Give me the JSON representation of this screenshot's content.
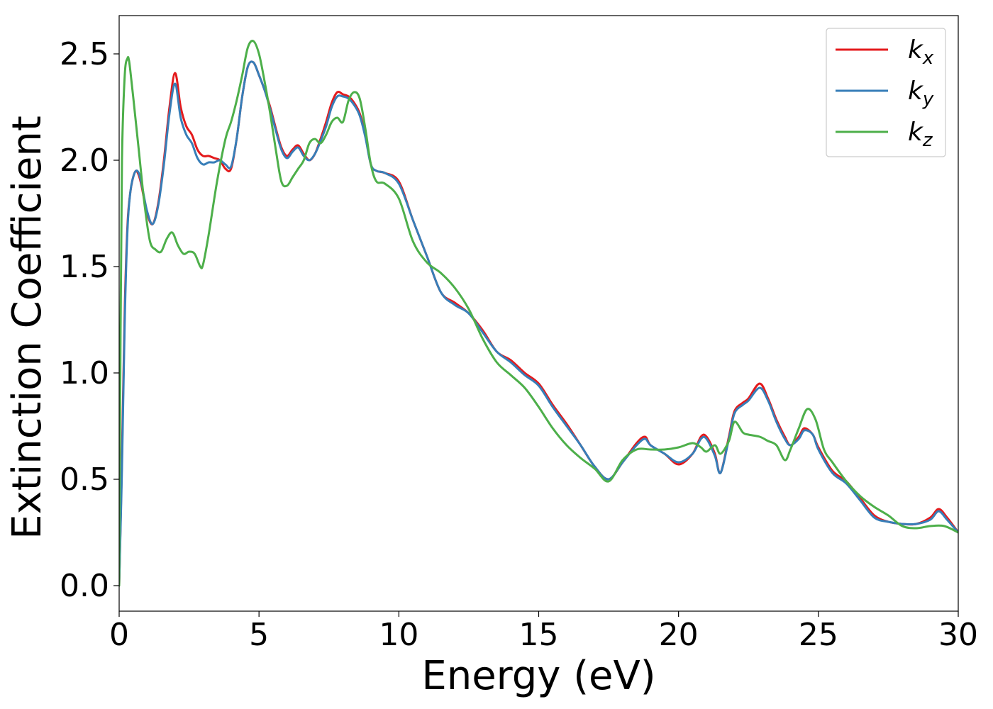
{
  "chart_data": {
    "type": "line",
    "title": "",
    "xlabel": "Energy (eV)",
    "ylabel": "Extinction Coefficient",
    "xlim": [
      0,
      30
    ],
    "ylim": [
      -0.12,
      2.68
    ],
    "xticks": [
      0,
      5,
      10,
      15,
      20,
      25,
      30
    ],
    "xtick_labels": [
      "0",
      "5",
      "10",
      "15",
      "20",
      "25",
      "30"
    ],
    "yticks": [
      0.0,
      0.5,
      1.0,
      1.5,
      2.0,
      2.5
    ],
    "ytick_labels": [
      "0.0",
      "0.5",
      "1.0",
      "1.5",
      "2.0",
      "2.5"
    ],
    "grid": false,
    "legend_position": "top-right",
    "series": [
      {
        "name": "k",
        "subscript": "x",
        "color": "#e41a1c",
        "x": [
          0,
          0.1,
          0.2,
          0.3,
          0.4,
          0.5,
          0.6,
          0.7,
          0.8,
          1.0,
          1.2,
          1.4,
          1.6,
          1.8,
          2.0,
          2.2,
          2.4,
          2.6,
          2.8,
          3.0,
          3.2,
          3.4,
          3.6,
          3.8,
          4.0,
          4.2,
          4.4,
          4.6,
          4.8,
          5.0,
          5.2,
          5.4,
          5.6,
          5.8,
          6.0,
          6.2,
          6.4,
          6.6,
          6.8,
          7.0,
          7.2,
          7.4,
          7.6,
          7.8,
          8.0,
          8.2,
          8.4,
          8.6,
          8.8,
          9.0,
          9.2,
          9.5,
          10.0,
          10.5,
          11.0,
          11.5,
          12.0,
          12.5,
          13.0,
          13.5,
          14.0,
          14.5,
          15.0,
          15.5,
          16.0,
          16.5,
          17.0,
          17.5,
          18.0,
          18.5,
          18.8,
          19.0,
          19.5,
          20.0,
          20.5,
          20.8,
          21.0,
          21.3,
          21.5,
          21.8,
          22.0,
          22.3,
          22.5,
          22.9,
          23.2,
          23.5,
          23.8,
          24.0,
          24.3,
          24.5,
          24.8,
          25.0,
          25.5,
          26.0,
          26.5,
          27.0,
          27.5,
          28.0,
          28.5,
          29.0,
          29.3,
          29.6,
          30.0
        ],
        "y": [
          0.0,
          0.6,
          1.3,
          1.7,
          1.85,
          1.92,
          1.95,
          1.93,
          1.88,
          1.75,
          1.7,
          1.8,
          2.0,
          2.25,
          2.41,
          2.25,
          2.16,
          2.12,
          2.05,
          2.02,
          2.02,
          2.01,
          2.0,
          1.96,
          1.96,
          2.1,
          2.3,
          2.44,
          2.46,
          2.4,
          2.33,
          2.25,
          2.15,
          2.06,
          2.02,
          2.05,
          2.07,
          2.03,
          2.0,
          2.03,
          2.1,
          2.18,
          2.27,
          2.32,
          2.31,
          2.3,
          2.27,
          2.22,
          2.12,
          1.98,
          1.95,
          1.94,
          1.9,
          1.72,
          1.55,
          1.38,
          1.33,
          1.28,
          1.2,
          1.1,
          1.06,
          1.0,
          0.95,
          0.85,
          0.76,
          0.66,
          0.56,
          0.5,
          0.58,
          0.67,
          0.7,
          0.66,
          0.62,
          0.57,
          0.62,
          0.7,
          0.7,
          0.62,
          0.53,
          0.7,
          0.82,
          0.86,
          0.88,
          0.95,
          0.88,
          0.78,
          0.7,
          0.66,
          0.7,
          0.74,
          0.71,
          0.65,
          0.54,
          0.49,
          0.41,
          0.33,
          0.3,
          0.29,
          0.29,
          0.32,
          0.36,
          0.32,
          0.25
        ]
      },
      {
        "name": "k",
        "subscript": "y",
        "color": "#377eb8",
        "x": [
          0,
          0.1,
          0.2,
          0.3,
          0.4,
          0.5,
          0.6,
          0.7,
          0.8,
          1.0,
          1.2,
          1.4,
          1.6,
          1.8,
          2.0,
          2.2,
          2.4,
          2.6,
          2.8,
          3.0,
          3.2,
          3.4,
          3.6,
          3.8,
          4.0,
          4.2,
          4.4,
          4.6,
          4.8,
          5.0,
          5.2,
          5.4,
          5.6,
          5.8,
          6.0,
          6.2,
          6.4,
          6.6,
          6.8,
          7.0,
          7.2,
          7.4,
          7.6,
          7.8,
          8.0,
          8.2,
          8.4,
          8.6,
          8.8,
          9.0,
          9.2,
          9.5,
          10.0,
          10.5,
          11.0,
          11.5,
          12.0,
          12.5,
          13.0,
          13.5,
          14.0,
          14.5,
          15.0,
          15.5,
          16.0,
          16.5,
          17.0,
          17.5,
          18.0,
          18.5,
          18.8,
          19.0,
          19.5,
          20.0,
          20.5,
          20.8,
          21.0,
          21.3,
          21.5,
          21.8,
          22.0,
          22.3,
          22.5,
          22.9,
          23.2,
          23.5,
          23.8,
          24.0,
          24.3,
          24.5,
          24.8,
          25.0,
          25.5,
          26.0,
          26.5,
          27.0,
          27.5,
          28.0,
          28.5,
          29.0,
          29.3,
          29.6,
          30.0
        ],
        "y": [
          0.0,
          0.55,
          1.25,
          1.68,
          1.85,
          1.92,
          1.95,
          1.94,
          1.89,
          1.76,
          1.7,
          1.79,
          1.98,
          2.22,
          2.36,
          2.2,
          2.12,
          2.08,
          2.01,
          1.98,
          1.99,
          1.99,
          2.0,
          1.98,
          1.97,
          2.1,
          2.3,
          2.44,
          2.46,
          2.4,
          2.33,
          2.24,
          2.14,
          2.05,
          2.01,
          2.04,
          2.06,
          2.02,
          2.0,
          2.03,
          2.09,
          2.16,
          2.25,
          2.3,
          2.3,
          2.29,
          2.26,
          2.21,
          2.11,
          1.98,
          1.95,
          1.94,
          1.89,
          1.72,
          1.55,
          1.38,
          1.32,
          1.28,
          1.19,
          1.1,
          1.05,
          0.99,
          0.94,
          0.84,
          0.75,
          0.66,
          0.56,
          0.5,
          0.58,
          0.66,
          0.69,
          0.66,
          0.62,
          0.58,
          0.62,
          0.69,
          0.69,
          0.61,
          0.53,
          0.69,
          0.81,
          0.85,
          0.87,
          0.93,
          0.87,
          0.77,
          0.69,
          0.66,
          0.69,
          0.73,
          0.71,
          0.64,
          0.53,
          0.48,
          0.4,
          0.32,
          0.3,
          0.29,
          0.29,
          0.31,
          0.35,
          0.31,
          0.25
        ]
      },
      {
        "name": "k",
        "subscript": "z",
        "color": "#4daf4a",
        "x": [
          0,
          0.05,
          0.1,
          0.2,
          0.3,
          0.35,
          0.4,
          0.5,
          0.7,
          0.9,
          1.1,
          1.3,
          1.5,
          1.7,
          1.9,
          2.1,
          2.3,
          2.5,
          2.7,
          2.9,
          3.0,
          3.2,
          3.5,
          3.8,
          4.0,
          4.2,
          4.4,
          4.6,
          4.8,
          5.0,
          5.2,
          5.4,
          5.6,
          5.8,
          6.0,
          6.2,
          6.4,
          6.6,
          6.8,
          7.0,
          7.2,
          7.4,
          7.6,
          7.8,
          8.0,
          8.2,
          8.4,
          8.6,
          8.8,
          9.0,
          9.2,
          9.5,
          10.0,
          10.5,
          11.0,
          11.5,
          12.0,
          12.5,
          13.0,
          13.5,
          14.0,
          14.5,
          15.0,
          15.5,
          16.0,
          16.5,
          17.0,
          17.5,
          18.0,
          18.5,
          19.0,
          19.5,
          20.0,
          20.5,
          20.8,
          21.0,
          21.3,
          21.5,
          21.8,
          22.0,
          22.3,
          22.5,
          22.9,
          23.2,
          23.5,
          23.8,
          24.0,
          24.3,
          24.6,
          24.9,
          25.2,
          25.5,
          26.0,
          26.5,
          27.0,
          27.5,
          28.0,
          28.5,
          29.0,
          29.5,
          30.0
        ],
        "y": [
          0.0,
          1.2,
          2.0,
          2.4,
          2.48,
          2.47,
          2.42,
          2.3,
          2.05,
          1.8,
          1.62,
          1.58,
          1.57,
          1.63,
          1.66,
          1.6,
          1.56,
          1.57,
          1.56,
          1.5,
          1.51,
          1.65,
          1.9,
          2.1,
          2.18,
          2.28,
          2.4,
          2.53,
          2.56,
          2.5,
          2.37,
          2.22,
          2.05,
          1.9,
          1.88,
          1.92,
          1.96,
          2.0,
          2.08,
          2.1,
          2.08,
          2.12,
          2.18,
          2.2,
          2.18,
          2.28,
          2.32,
          2.29,
          2.15,
          1.98,
          1.9,
          1.89,
          1.82,
          1.62,
          1.52,
          1.47,
          1.4,
          1.3,
          1.16,
          1.05,
          0.99,
          0.93,
          0.84,
          0.74,
          0.66,
          0.6,
          0.55,
          0.49,
          0.59,
          0.64,
          0.64,
          0.64,
          0.65,
          0.67,
          0.65,
          0.63,
          0.66,
          0.62,
          0.68,
          0.77,
          0.72,
          0.71,
          0.7,
          0.68,
          0.66,
          0.59,
          0.64,
          0.74,
          0.83,
          0.78,
          0.64,
          0.58,
          0.49,
          0.42,
          0.37,
          0.33,
          0.28,
          0.27,
          0.28,
          0.28,
          0.25
        ]
      }
    ]
  }
}
